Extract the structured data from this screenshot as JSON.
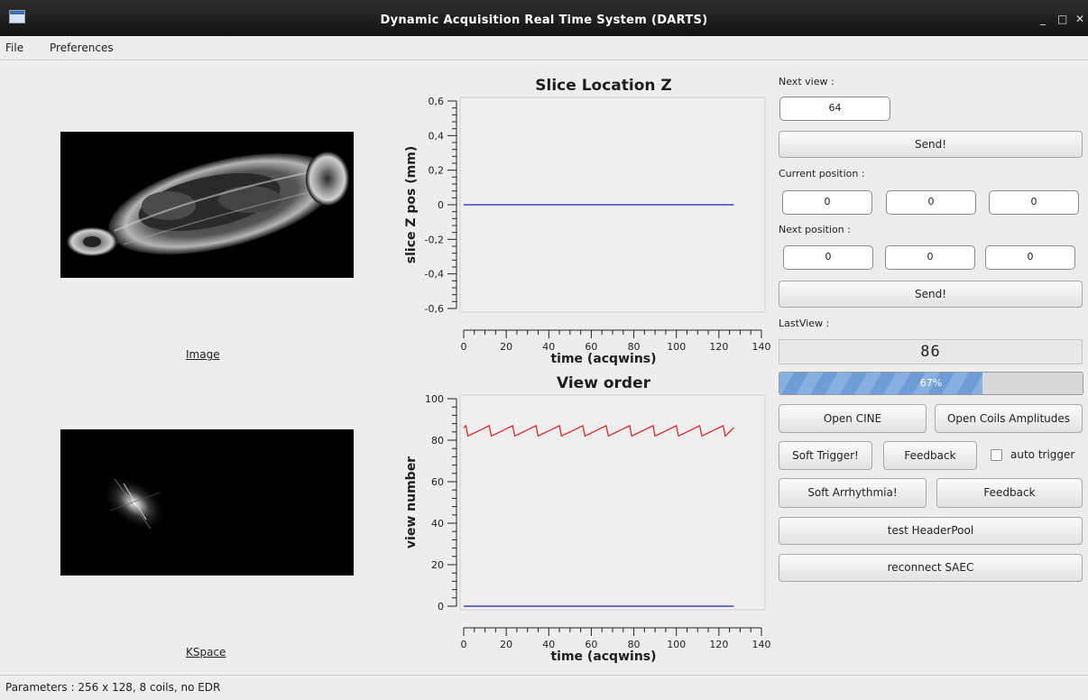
{
  "window": {
    "title": "Dynamic Acquisition Real Time System (DARTS)",
    "icon": "app-window-icon",
    "controls": {
      "minimize": "_",
      "maximize": "□",
      "close": "✕"
    }
  },
  "menu": {
    "file": "File",
    "preferences": "Preferences"
  },
  "images": {
    "image_label": "Image",
    "kspace_label": "KSpace"
  },
  "chart_data": [
    {
      "type": "line",
      "title": "Slice Location Z",
      "xlabel": "time (acqwins)",
      "ylabel": "slice Z pos (mm)",
      "xlim": [
        0,
        140
      ],
      "ylim": [
        -0.6,
        0.6
      ],
      "x_ticks": [
        0,
        20,
        40,
        60,
        80,
        100,
        120,
        140
      ],
      "y_ticks": [
        "0,6",
        "0,4",
        "0,2",
        "0",
        "-0,2",
        "-0,4",
        "-0,6"
      ],
      "series": [
        {
          "color": "#1f1fb4",
          "x": [
            0,
            127
          ],
          "y": [
            0,
            0
          ]
        }
      ]
    },
    {
      "type": "line",
      "title": "View order",
      "xlabel": "time (acqwins)",
      "ylabel": "view number",
      "xlim": [
        0,
        140
      ],
      "ylim": [
        0,
        100
      ],
      "x_ticks": [
        0,
        20,
        40,
        60,
        80,
        100,
        120,
        140
      ],
      "y_ticks": [
        "100",
        "80",
        "60",
        "40",
        "20",
        "0"
      ],
      "series": [
        {
          "color": "#e01b1b",
          "x": [
            0,
            1,
            2,
            4,
            6,
            8,
            10,
            12,
            13,
            15,
            17,
            19,
            21,
            23,
            24,
            26,
            28,
            30,
            32,
            34,
            35,
            37,
            39,
            41,
            43,
            45,
            46,
            48,
            50,
            52,
            54,
            56,
            57,
            59,
            61,
            63,
            65,
            67,
            68,
            70,
            72,
            74,
            76,
            78,
            79,
            81,
            83,
            85,
            87,
            89,
            90,
            92,
            94,
            96,
            98,
            100,
            101,
            103,
            105,
            107,
            109,
            111,
            112,
            114,
            116,
            118,
            120,
            122,
            123,
            125,
            127
          ],
          "y": [
            86,
            87,
            82,
            83,
            84,
            85,
            86,
            87,
            82,
            83,
            84,
            85,
            86,
            87,
            82,
            83,
            84,
            85,
            86,
            87,
            82,
            83,
            84,
            85,
            86,
            87,
            82,
            83,
            84,
            85,
            86,
            87,
            82,
            83,
            84,
            85,
            86,
            87,
            82,
            83,
            84,
            85,
            86,
            87,
            82,
            83,
            84,
            85,
            86,
            87,
            82,
            83,
            84,
            85,
            86,
            87,
            82,
            83,
            84,
            85,
            86,
            87,
            82,
            83,
            84,
            85,
            86,
            87,
            82,
            84,
            86
          ]
        },
        {
          "color": "#1f1fb4",
          "x": [
            0,
            127
          ],
          "y": [
            0,
            0
          ]
        }
      ]
    }
  ],
  "controls": {
    "next_view_label": "Next view :",
    "next_view_value": "64",
    "send_label": "Send!",
    "current_position_label": "Current position :",
    "current_position": [
      "0",
      "0",
      "0"
    ],
    "next_position_label": "Next position :",
    "next_position": [
      "0",
      "0",
      "0"
    ],
    "send2_label": "Send!",
    "last_view_label": "LastView :",
    "last_view_value": "86",
    "progress": 0.67,
    "progress_text": "67%",
    "open_cine": "Open CINE",
    "open_coils": "Open Coils Amplitudes",
    "soft_trigger": "Soft Trigger!",
    "feedback1": "Feedback",
    "auto_trigger": "auto trigger",
    "auto_trigger_checked": false,
    "soft_arrhythmia": "Soft Arrhythmia!",
    "feedback2": "Feedback",
    "test_headerpool": "test HeaderPool",
    "reconnect_saec": "reconnect SAEC"
  },
  "status": {
    "text": "Parameters : 256 x 128, 8 coils, no EDR"
  }
}
